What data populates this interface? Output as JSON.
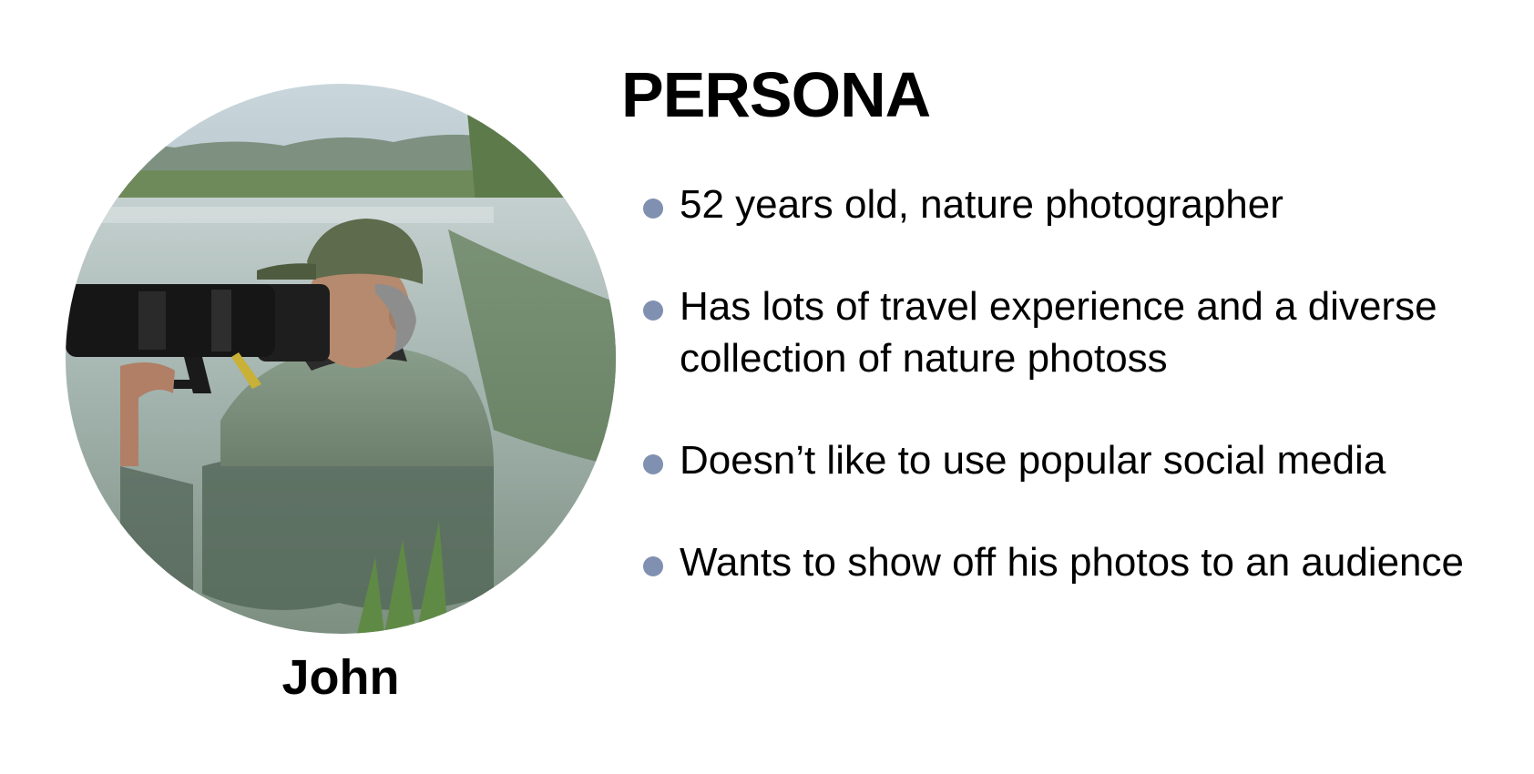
{
  "title": "PERSONA",
  "persona": {
    "name": "John",
    "photo_description_icon": "photographer-in-water-photo"
  },
  "bullets": [
    {
      "text": "52 years old, nature photographer"
    },
    {
      "text": "Has lots of travel experience and a diverse collection of nature photoss"
    },
    {
      "text": "Doesn’t like to use popular social media"
    },
    {
      "text": "Wants to show off his photos to an audience"
    }
  ],
  "colors": {
    "bullet_dot": "#8090b0",
    "text": "#000000",
    "background": "#ffffff"
  }
}
